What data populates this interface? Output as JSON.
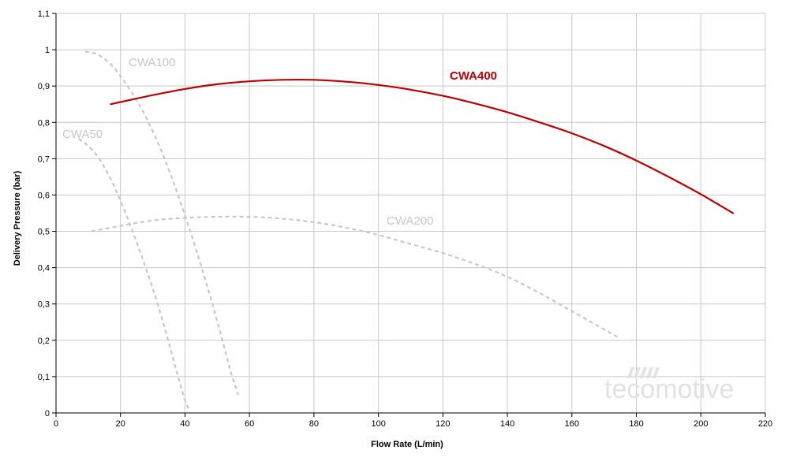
{
  "chart_data": {
    "type": "line",
    "title": "",
    "xlabel": "Flow Rate (L/min)",
    "ylabel": "Delivery Pressure (bar)",
    "xlim": [
      0,
      220
    ],
    "ylim": [
      0,
      1.1
    ],
    "x_ticks": [
      "0",
      "20",
      "40",
      "60",
      "80",
      "100",
      "120",
      "140",
      "160",
      "180",
      "200",
      "220"
    ],
    "y_ticks": [
      "0",
      "0,1",
      "0,2",
      "0,3",
      "0,4",
      "0,5",
      "0,6",
      "0,7",
      "0,8",
      "0,9",
      "1",
      "1,1"
    ],
    "grid": true,
    "watermark": "tecomotive",
    "series": [
      {
        "name": "CWA400",
        "color": "#c00000",
        "style": "solid",
        "label_bold": true,
        "x": [
          17,
          30,
          40,
          50,
          60,
          70,
          80,
          90,
          100,
          110,
          120,
          130,
          140,
          150,
          160,
          170,
          180,
          190,
          200,
          210
        ],
        "y": [
          0.85,
          0.875,
          0.892,
          0.905,
          0.913,
          0.917,
          0.917,
          0.912,
          0.903,
          0.89,
          0.873,
          0.852,
          0.828,
          0.8,
          0.77,
          0.735,
          0.695,
          0.65,
          0.602,
          0.55
        ]
      },
      {
        "name": "CWA100",
        "color": "#c8c8c8",
        "style": "dashed",
        "label_bold": false,
        "x": [
          9,
          12,
          15,
          18,
          21,
          24,
          27,
          30,
          33,
          36,
          39,
          42,
          45,
          48,
          51,
          54,
          56.5
        ],
        "y": [
          0.995,
          0.99,
          0.975,
          0.95,
          0.915,
          0.875,
          0.83,
          0.775,
          0.715,
          0.645,
          0.57,
          0.49,
          0.405,
          0.315,
          0.22,
          0.12,
          0.05
        ]
      },
      {
        "name": "CWA50",
        "color": "#c8c8c8",
        "style": "dashed",
        "label_bold": false,
        "x": [
          7,
          10,
          13,
          16,
          19,
          22,
          25,
          28,
          31,
          34,
          36,
          38,
          40,
          41.5
        ],
        "y": [
          0.755,
          0.735,
          0.705,
          0.66,
          0.605,
          0.54,
          0.47,
          0.395,
          0.315,
          0.225,
          0.16,
          0.095,
          0.035,
          0.005
        ]
      },
      {
        "name": "CWA200",
        "color": "#c8c8c8",
        "style": "dashed",
        "label_bold": false,
        "x": [
          11,
          20,
          30,
          40,
          50,
          60,
          70,
          80,
          90,
          100,
          110,
          120,
          130,
          140,
          150,
          160,
          170,
          175
        ],
        "y": [
          0.5,
          0.515,
          0.53,
          0.537,
          0.54,
          0.54,
          0.535,
          0.525,
          0.51,
          0.49,
          0.465,
          0.44,
          0.41,
          0.375,
          0.33,
          0.28,
          0.23,
          0.205
        ]
      }
    ]
  }
}
